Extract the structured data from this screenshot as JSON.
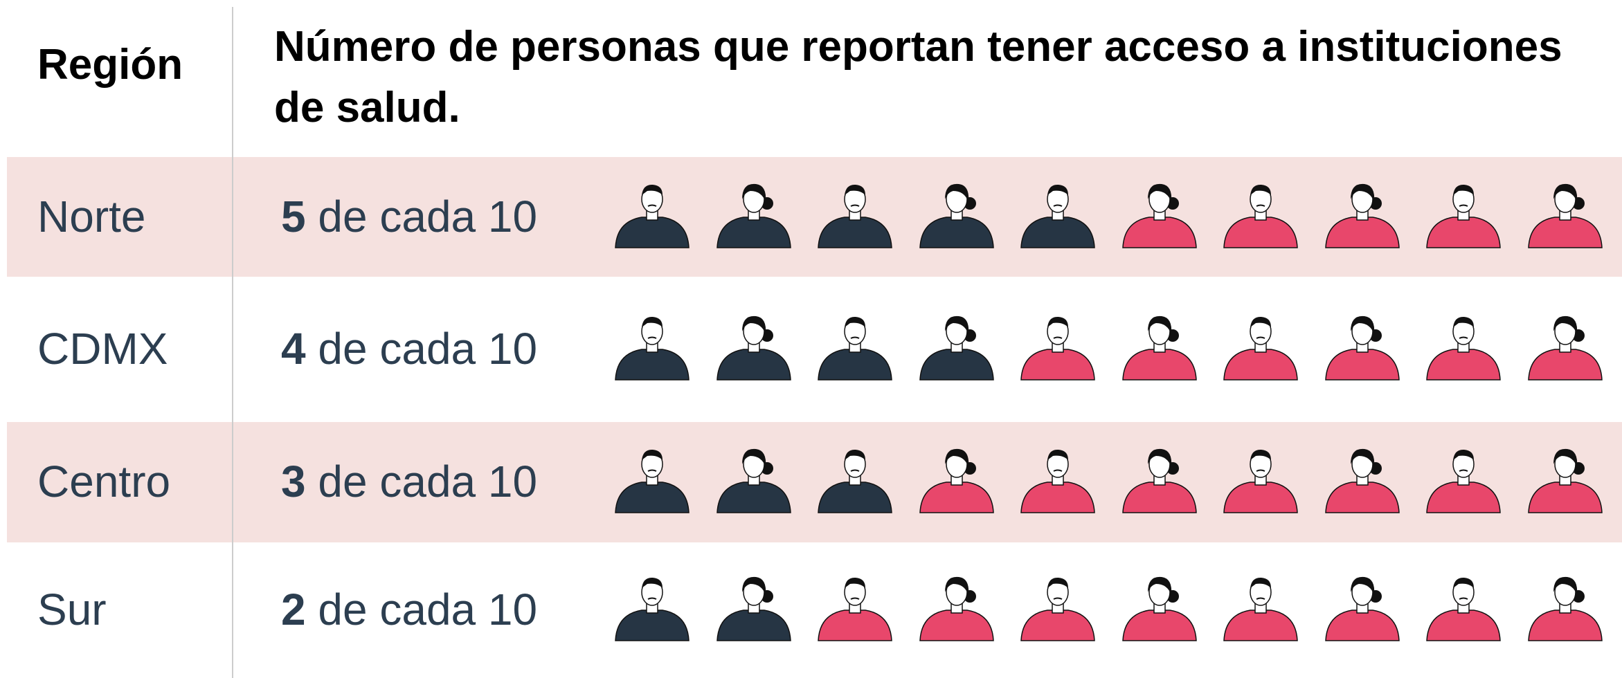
{
  "chart_data": {
    "type": "pictogram",
    "category_header": "Región",
    "title": "Número de personas que reportan tener acceso a instituciones de salud.",
    "categories": [
      "Norte",
      "CDMX",
      "Centro",
      "Sur"
    ],
    "values": [
      5,
      4,
      3,
      2
    ],
    "connector": "de cada",
    "total": 10,
    "colors": {
      "counted": "#263544",
      "rest": "#e8476b",
      "band": "#f5e1df"
    }
  }
}
